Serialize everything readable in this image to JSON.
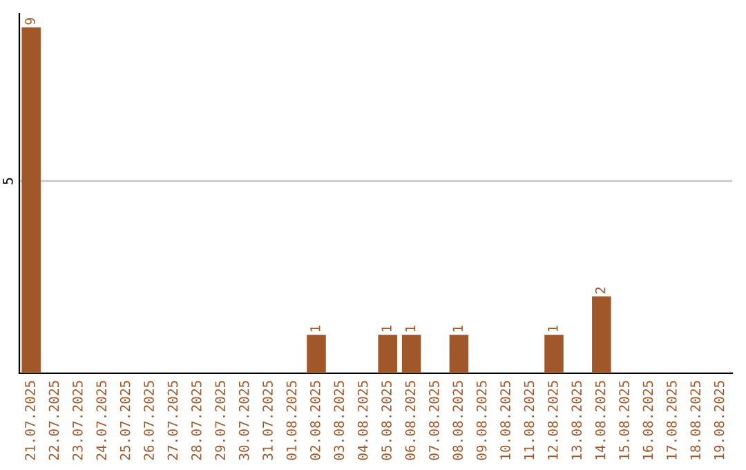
{
  "chart_data": {
    "type": "bar",
    "categories": [
      "21.07.2025",
      "22.07.2025",
      "23.07.2025",
      "24.07.2025",
      "25.07.2025",
      "26.07.2025",
      "27.07.2025",
      "28.07.2025",
      "29.07.2025",
      "30.07.2025",
      "31.07.2025",
      "01.08.2025",
      "02.08.2025",
      "03.08.2025",
      "04.08.2025",
      "05.08.2025",
      "06.08.2025",
      "07.08.2025",
      "08.08.2025",
      "09.08.2025",
      "10.08.2025",
      "11.08.2025",
      "12.08.2025",
      "13.08.2025",
      "14.08.2025",
      "15.08.2025",
      "16.08.2025",
      "17.08.2025",
      "18.08.2025",
      "19.08.2025"
    ],
    "values": [
      9,
      0,
      0,
      0,
      0,
      0,
      0,
      0,
      0,
      0,
      0,
      0,
      1,
      0,
      0,
      1,
      1,
      0,
      1,
      0,
      0,
      0,
      1,
      0,
      2,
      0,
      0,
      0,
      0,
      0
    ],
    "value_labels": [
      "9",
      null,
      null,
      null,
      null,
      null,
      null,
      null,
      null,
      null,
      null,
      null,
      "1",
      null,
      null,
      "1",
      "1",
      null,
      "1",
      null,
      null,
      null,
      "1",
      null,
      "2",
      null,
      null,
      null,
      null,
      null
    ],
    "color": "#a0582a",
    "ylim": [
      0,
      9.35
    ],
    "yticks": [
      5
    ],
    "grid": "y"
  }
}
